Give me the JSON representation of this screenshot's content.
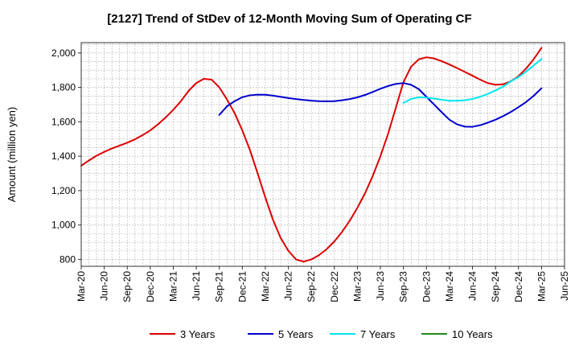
{
  "chart_data": {
    "type": "line",
    "title": "[2127]  Trend of StDev of 12-Month Moving Sum of Operating CF",
    "ylabel": "Amount (million yen)",
    "xlabel": "",
    "ylim": [
      760,
      2060
    ],
    "yticks": [
      800,
      1000,
      1200,
      1400,
      1600,
      1800,
      2000
    ],
    "ytick_labels": [
      "800",
      "1,000",
      "1,200",
      "1,400",
      "1,600",
      "1,800",
      "2,000"
    ],
    "x_start": "Mar-20",
    "x_months": 63,
    "x_ticks": [
      {
        "label": "Mar-20",
        "m": 0
      },
      {
        "label": "Jun-20",
        "m": 3
      },
      {
        "label": "Sep-20",
        "m": 6
      },
      {
        "label": "Dec-20",
        "m": 9
      },
      {
        "label": "Mar-21",
        "m": 12
      },
      {
        "label": "Jun-21",
        "m": 15
      },
      {
        "label": "Sep-21",
        "m": 18
      },
      {
        "label": "Dec-21",
        "m": 21
      },
      {
        "label": "Mar-22",
        "m": 24
      },
      {
        "label": "Jun-22",
        "m": 27
      },
      {
        "label": "Sep-22",
        "m": 30
      },
      {
        "label": "Dec-22",
        "m": 33
      },
      {
        "label": "Mar-23",
        "m": 36
      },
      {
        "label": "Jun-23",
        "m": 39
      },
      {
        "label": "Sep-23",
        "m": 42
      },
      {
        "label": "Dec-23",
        "m": 45
      },
      {
        "label": "Mar-24",
        "m": 48
      },
      {
        "label": "Jun-24",
        "m": 51
      },
      {
        "label": "Sep-24",
        "m": 54
      },
      {
        "label": "Dec-24",
        "m": 57
      },
      {
        "label": "Mar-25",
        "m": 60
      },
      {
        "label": "Jun-25",
        "m": 63
      }
    ],
    "grid": true,
    "legend_position": "bottom",
    "series": [
      {
        "name": "3 Years",
        "color": "#dd0000",
        "points": [
          [
            0,
            1345
          ],
          [
            1,
            1375
          ],
          [
            2,
            1403
          ],
          [
            3,
            1425
          ],
          [
            4,
            1445
          ],
          [
            5,
            1462
          ],
          [
            6,
            1478
          ],
          [
            7,
            1498
          ],
          [
            8,
            1522
          ],
          [
            9,
            1550
          ],
          [
            10,
            1585
          ],
          [
            11,
            1625
          ],
          [
            12,
            1670
          ],
          [
            13,
            1720
          ],
          [
            14,
            1780
          ],
          [
            15,
            1825
          ],
          [
            16,
            1850
          ],
          [
            17,
            1845
          ],
          [
            18,
            1800
          ],
          [
            19,
            1730
          ],
          [
            20,
            1650
          ],
          [
            21,
            1550
          ],
          [
            22,
            1435
          ],
          [
            23,
            1300
          ],
          [
            24,
            1160
          ],
          [
            25,
            1030
          ],
          [
            26,
            925
          ],
          [
            27,
            850
          ],
          [
            28,
            800
          ],
          [
            29,
            787
          ],
          [
            30,
            800
          ],
          [
            31,
            825
          ],
          [
            32,
            860
          ],
          [
            33,
            905
          ],
          [
            34,
            960
          ],
          [
            35,
            1025
          ],
          [
            36,
            1100
          ],
          [
            37,
            1185
          ],
          [
            38,
            1285
          ],
          [
            39,
            1400
          ],
          [
            40,
            1530
          ],
          [
            41,
            1680
          ],
          [
            42,
            1830
          ],
          [
            43,
            1920
          ],
          [
            44,
            1963
          ],
          [
            45,
            1975
          ],
          [
            46,
            1968
          ],
          [
            47,
            1952
          ],
          [
            48,
            1933
          ],
          [
            49,
            1912
          ],
          [
            50,
            1890
          ],
          [
            51,
            1868
          ],
          [
            52,
            1845
          ],
          [
            53,
            1825
          ],
          [
            54,
            1815
          ],
          [
            55,
            1818
          ],
          [
            56,
            1835
          ],
          [
            57,
            1865
          ],
          [
            58,
            1910
          ],
          [
            59,
            1965
          ],
          [
            60,
            2030
          ]
        ]
      },
      {
        "name": "5 Years",
        "color": "#0000cc",
        "points": [
          [
            18,
            1640
          ],
          [
            19,
            1690
          ],
          [
            20,
            1720
          ],
          [
            21,
            1743
          ],
          [
            22,
            1754
          ],
          [
            23,
            1758
          ],
          [
            24,
            1757
          ],
          [
            25,
            1752
          ],
          [
            26,
            1745
          ],
          [
            27,
            1738
          ],
          [
            28,
            1732
          ],
          [
            29,
            1727
          ],
          [
            30,
            1723
          ],
          [
            31,
            1720
          ],
          [
            32,
            1719
          ],
          [
            33,
            1720
          ],
          [
            34,
            1725
          ],
          [
            35,
            1732
          ],
          [
            36,
            1742
          ],
          [
            37,
            1756
          ],
          [
            38,
            1773
          ],
          [
            39,
            1792
          ],
          [
            40,
            1808
          ],
          [
            41,
            1820
          ],
          [
            42,
            1825
          ],
          [
            43,
            1815
          ],
          [
            44,
            1790
          ],
          [
            45,
            1745
          ],
          [
            46,
            1700
          ],
          [
            47,
            1655
          ],
          [
            48,
            1612
          ],
          [
            49,
            1585
          ],
          [
            50,
            1572
          ],
          [
            51,
            1571
          ],
          [
            52,
            1580
          ],
          [
            53,
            1595
          ],
          [
            54,
            1612
          ],
          [
            55,
            1633
          ],
          [
            56,
            1657
          ],
          [
            57,
            1685
          ],
          [
            58,
            1715
          ],
          [
            59,
            1752
          ],
          [
            60,
            1795
          ]
        ]
      },
      {
        "name": "7 Years",
        "color": "#00e5ee",
        "points": [
          [
            42,
            1710
          ],
          [
            43,
            1733
          ],
          [
            44,
            1742
          ],
          [
            45,
            1740
          ],
          [
            46,
            1735
          ],
          [
            47,
            1728
          ],
          [
            48,
            1722
          ],
          [
            49,
            1722
          ],
          [
            50,
            1725
          ],
          [
            51,
            1733
          ],
          [
            52,
            1745
          ],
          [
            53,
            1762
          ],
          [
            54,
            1782
          ],
          [
            55,
            1805
          ],
          [
            56,
            1835
          ],
          [
            57,
            1860
          ],
          [
            58,
            1892
          ],
          [
            59,
            1928
          ],
          [
            60,
            1965
          ]
        ]
      },
      {
        "name": "10 Years",
        "color": "#228b22",
        "points": []
      }
    ]
  }
}
